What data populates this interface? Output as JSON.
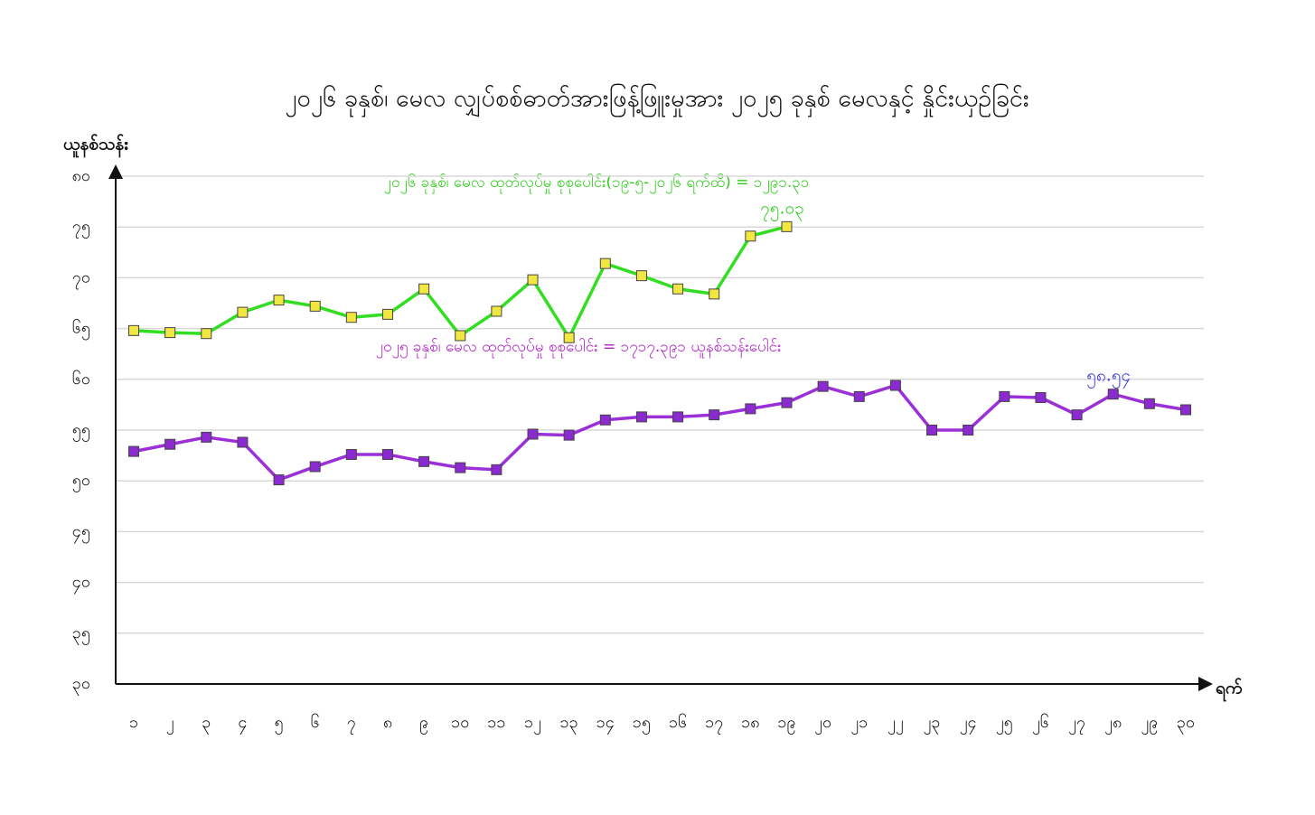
{
  "chart_data": {
    "type": "line",
    "title": "၂၀၂၆ ခုနှစ်၊ မေလ လျှပ်စစ်ဓာတ်အားဖြန့်ဖြူးမှုအား ၂၀၂၅ ခုနှစ် မေလနှင့် နှိုင်းယှဉ်ခြင်း",
    "y_label": "ယူနစ်သန်း",
    "x_label": "ရက်",
    "annotations": [
      "၂၀၂၆ ခုနှစ်၊ မေလ ထုတ်လုပ်မှု စုစုပေါင်း(၁၉-၅-၂၀၂၆ ရက်ထိ) = ၁၂၉၁.၃၁",
      "၂၀၂၅ ခုနှစ်၊ မေလ ထုတ်လုပ်မှု စုစုပေါင်း = ၁၇၁၇.၃၉၁ ယူနစ်သန်းပေါင်း"
    ],
    "categories": [
      "၁",
      "၂",
      "၃",
      "၄",
      "၅",
      "၆",
      "၇",
      "၈",
      "၉",
      "၁၀",
      "၁၁",
      "၁၂",
      "၁၃",
      "၁၄",
      "၁၅",
      "၁၆",
      "၁၇",
      "၁၈",
      "၁၉",
      "၂၀",
      "၂၁",
      "၂၂",
      "၂၃",
      "၂၄",
      "၂၅",
      "၂၆",
      "၂၇",
      "၂၈",
      "၂၉",
      "၃၀"
    ],
    "series": [
      {
        "color": "#33dd22",
        "marker_color": "#f2e640",
        "values": [
          64.8,
          64.6,
          64.5,
          66.6,
          67.8,
          67.2,
          66.1,
          66.4,
          68.9,
          64.3,
          66.7,
          69.8,
          64.1,
          71.4,
          70.2,
          68.9,
          68.4,
          74.1,
          75.03,
          null,
          null,
          null,
          null,
          null,
          null,
          null,
          null,
          null,
          null,
          null
        ],
        "value_labels": [
          null,
          null,
          null,
          null,
          null,
          null,
          null,
          null,
          null,
          null,
          null,
          null,
          null,
          null,
          null,
          null,
          null,
          null,
          "၇၅.၀၃",
          null,
          null,
          null,
          null,
          null,
          null,
          null,
          null,
          null,
          null,
          null
        ]
      },
      {
        "color": "#9b30d9",
        "marker_color": "#8a2ad0",
        "values": [
          52.9,
          53.6,
          54.3,
          53.8,
          50.1,
          51.4,
          52.6,
          52.6,
          51.9,
          51.3,
          51.1,
          54.6,
          54.5,
          56.0,
          56.3,
          56.3,
          56.5,
          57.1,
          57.7,
          59.3,
          58.3,
          59.4,
          55.0,
          55.0,
          58.3,
          58.2,
          56.5,
          58.54,
          57.6,
          57.0
        ],
        "value_labels": [
          null,
          null,
          null,
          null,
          null,
          null,
          null,
          null,
          null,
          null,
          null,
          null,
          null,
          null,
          null,
          null,
          null,
          null,
          null,
          null,
          null,
          null,
          null,
          null,
          null,
          null,
          null,
          "၅၈.၅၄",
          null,
          null
        ]
      }
    ],
    "ylim": [
      30,
      80
    ],
    "yticks": [
      {
        "value": 30,
        "label": "၃၀"
      },
      {
        "value": 35,
        "label": "၃၅"
      },
      {
        "value": 40,
        "label": "၄၀"
      },
      {
        "value": 45,
        "label": "၄၅"
      },
      {
        "value": 50,
        "label": "၅၀"
      },
      {
        "value": 55,
        "label": "၅၅"
      },
      {
        "value": 60,
        "label": "၆၀"
      },
      {
        "value": 65,
        "label": "၆၅"
      },
      {
        "value": 70,
        "label": "၇၀"
      },
      {
        "value": 75,
        "label": "၇၅"
      },
      {
        "value": 80,
        "label": "၈၀"
      }
    ],
    "grid": true
  }
}
